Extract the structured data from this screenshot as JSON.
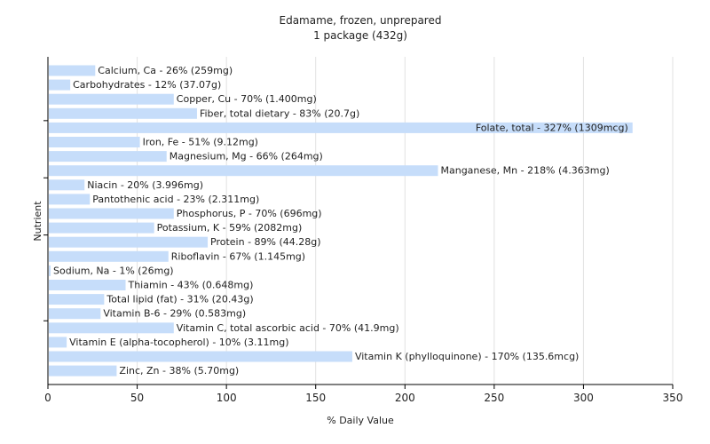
{
  "chart_data": {
    "type": "bar",
    "orientation": "horizontal",
    "title": "Edamame, frozen, unprepared",
    "subtitle": "1 package (432g)",
    "xlabel": "% Daily Value",
    "ylabel": "Nutrient",
    "xlim": [
      0,
      350
    ],
    "xticks": [
      "0",
      "50",
      "100",
      "150",
      "200",
      "250",
      "300",
      "350"
    ],
    "grid": true,
    "bar_color": "#c6ddfa",
    "categories": [
      "Calcium, Ca",
      "Carbohydrates",
      "Copper, Cu",
      "Fiber, total dietary",
      "Folate, total",
      "Iron, Fe",
      "Magnesium, Mg",
      "Manganese, Mn",
      "Niacin",
      "Pantothenic acid",
      "Phosphorus, P",
      "Potassium, K",
      "Protein",
      "Riboflavin",
      "Sodium, Na",
      "Thiamin",
      "Total lipid (fat)",
      "Vitamin B-6",
      "Vitamin C, total ascorbic acid",
      "Vitamin E (alpha-tocopherol)",
      "Vitamin K (phylloquinone)",
      "Zinc, Zn"
    ],
    "values": [
      26,
      12,
      70,
      83,
      327,
      51,
      66,
      218,
      20,
      23,
      70,
      59,
      89,
      67,
      1,
      43,
      31,
      29,
      70,
      10,
      170,
      38
    ],
    "labels": [
      "Calcium, Ca - 26% (259mg)",
      "Carbohydrates - 12% (37.07g)",
      "Copper, Cu - 70% (1.400mg)",
      "Fiber, total dietary - 83% (20.7g)",
      "Folate, total - 327% (1309mcg)",
      "Iron, Fe - 51% (9.12mg)",
      "Magnesium, Mg - 66% (264mg)",
      "Manganese, Mn - 218% (4.363mg)",
      "Niacin - 20% (3.996mg)",
      "Pantothenic acid - 23% (2.311mg)",
      "Phosphorus, P - 70% (696mg)",
      "Potassium, K - 59% (2082mg)",
      "Protein - 89% (44.28g)",
      "Riboflavin - 67% (1.145mg)",
      "Sodium, Na - 1% (26mg)",
      "Thiamin - 43% (0.648mg)",
      "Total lipid (fat) - 31% (20.43g)",
      "Vitamin B-6 - 29% (0.583mg)",
      "Vitamin C, total ascorbic acid - 70% (41.9mg)",
      "Vitamin E (alpha-tocopherol) - 10% (3.11mg)",
      "Vitamin K (phylloquinone) - 170% (135.6mcg)",
      "Zinc, Zn - 38% (5.70mg)"
    ]
  }
}
